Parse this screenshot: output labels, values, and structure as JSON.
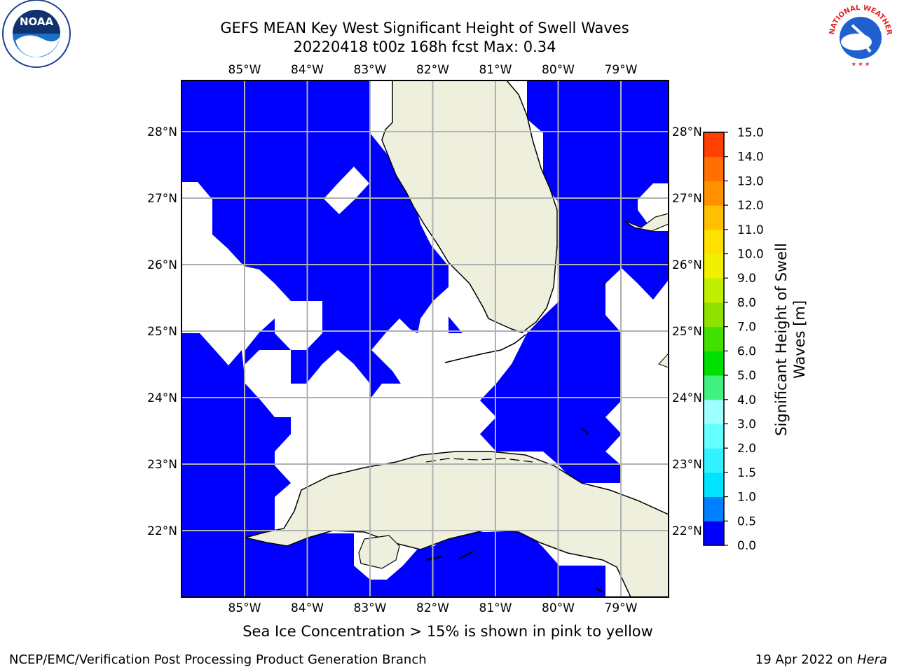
{
  "title": {
    "line1": "GEFS MEAN Key West Significant Height of Swell Waves",
    "line2": "20220418 t00z 168h fcst   Max: 0.34"
  },
  "map": {
    "lon_labels": [
      "85°W",
      "84°W",
      "83°W",
      "82°W",
      "81°W",
      "80°W",
      "79°W"
    ],
    "lat_labels": [
      "28°N",
      "27°N",
      "26°N",
      "25°N",
      "24°N",
      "23°N",
      "22°N"
    ],
    "colors": {
      "ocean": "#0000ff",
      "land": "#efefde",
      "grid": "#b0b0b0",
      "nodata": "#ffffff"
    }
  },
  "colorbar": {
    "label": "Significant Height of Swell Waves [m]",
    "ticks": [
      "0.0",
      "0.5",
      "1.0",
      "1.5",
      "2.0",
      "3.0",
      "4.0",
      "5.0",
      "6.0",
      "7.0",
      "8.0",
      "9.0",
      "10.0",
      "11.0",
      "12.0",
      "13.0",
      "14.0",
      "15.0"
    ],
    "colors": [
      "#0000ff",
      "#0080ff",
      "#00e5ff",
      "#33f2ff",
      "#66ffff",
      "#a0ffff",
      "#40f080",
      "#00e000",
      "#40e000",
      "#90e000",
      "#c0f000",
      "#f0f000",
      "#ffe000",
      "#ffc000",
      "#ff9000",
      "#ff7000",
      "#ff4000",
      "#ff0000"
    ]
  },
  "note": "Sea Ice Concentration > 15% is shown in pink to yellow",
  "footer": {
    "left": "NCEP/EMC/Verification Post Processing Product Generation Branch",
    "date": "19 Apr 2022 on",
    "machine": "Hera"
  },
  "logos": {
    "left": "NOAA",
    "right": "NATIONAL WEATHER SERVICE"
  }
}
